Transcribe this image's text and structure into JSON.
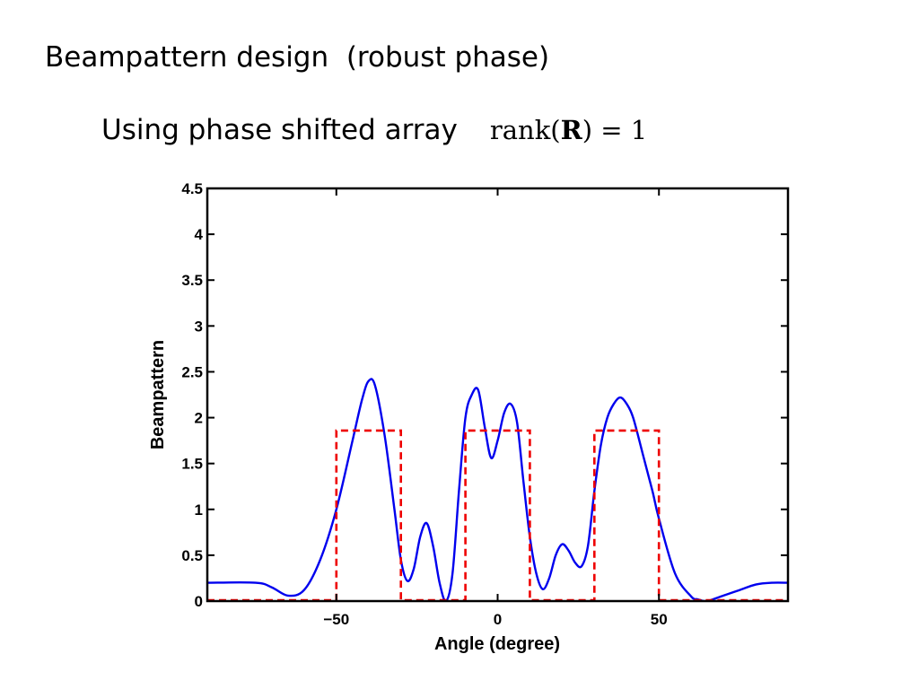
{
  "slide": {
    "title": "Beampattern design  (robust phase)",
    "subtitle": "Using phase shifted array",
    "formula": {
      "prefix": "rank(",
      "bold": "R",
      "suffix": ") = 1"
    }
  },
  "chart_data": {
    "type": "line",
    "title": "",
    "xlabel": "Angle (degree)",
    "ylabel": "Beampattern",
    "xlim": [
      -90,
      90
    ],
    "ylim": [
      0,
      4.5
    ],
    "grid": false,
    "xticks": [
      -50,
      0,
      50
    ],
    "xtick_labels": [
      "−50",
      "0",
      "50"
    ],
    "yticks": [
      0,
      0.5,
      1,
      1.5,
      2,
      2.5,
      3,
      3.5,
      4,
      4.5
    ],
    "ytick_labels": [
      "0",
      "0.5",
      "1",
      "1.5",
      "2",
      "2.5",
      "3",
      "3.5",
      "4",
      "4.5"
    ],
    "series": [
      {
        "color": "#0000ee",
        "style": "solid",
        "x": [
          -90,
          -75,
          -70,
          -65,
          -60,
          -55,
          -50,
          -45,
          -42,
          -40,
          -38,
          -35,
          -32,
          -30,
          -28,
          -26,
          -24,
          -22,
          -20,
          -18,
          -16,
          -14,
          -12,
          -10,
          -8,
          -6,
          -4,
          -2,
          0,
          2,
          4,
          6,
          8,
          10,
          12,
          14,
          16,
          18,
          20,
          22,
          24,
          26,
          28,
          30,
          32,
          34,
          36,
          38,
          40,
          42,
          45,
          48,
          50,
          55,
          60,
          62,
          64,
          66,
          70,
          75,
          80,
          85,
          90
        ],
        "y": [
          0.2,
          0.2,
          0.15,
          0.06,
          0.12,
          0.45,
          1.0,
          1.75,
          2.2,
          2.4,
          2.35,
          1.8,
          1.0,
          0.45,
          0.22,
          0.35,
          0.7,
          0.85,
          0.6,
          0.2,
          0.0,
          0.3,
          1.2,
          2.0,
          2.25,
          2.3,
          1.9,
          1.56,
          1.75,
          2.05,
          2.15,
          1.95,
          1.3,
          0.7,
          0.3,
          0.13,
          0.25,
          0.5,
          0.62,
          0.55,
          0.42,
          0.38,
          0.6,
          1.2,
          1.7,
          2.0,
          2.15,
          2.22,
          2.15,
          2.0,
          1.6,
          1.2,
          0.9,
          0.3,
          0.05,
          0.02,
          0.0,
          0.01,
          0.06,
          0.12,
          0.18,
          0.2,
          0.2
        ]
      },
      {
        "color": "#ee0000",
        "style": "dashed",
        "x": [
          -90,
          -50,
          -50,
          -30,
          -30,
          -10,
          -10,
          10,
          10,
          30,
          30,
          50,
          50,
          90
        ],
        "y": [
          0.01,
          0.01,
          1.86,
          1.86,
          0.01,
          0.01,
          1.86,
          1.86,
          0.01,
          0.01,
          1.86,
          1.86,
          0.01,
          0.01
        ]
      }
    ]
  }
}
